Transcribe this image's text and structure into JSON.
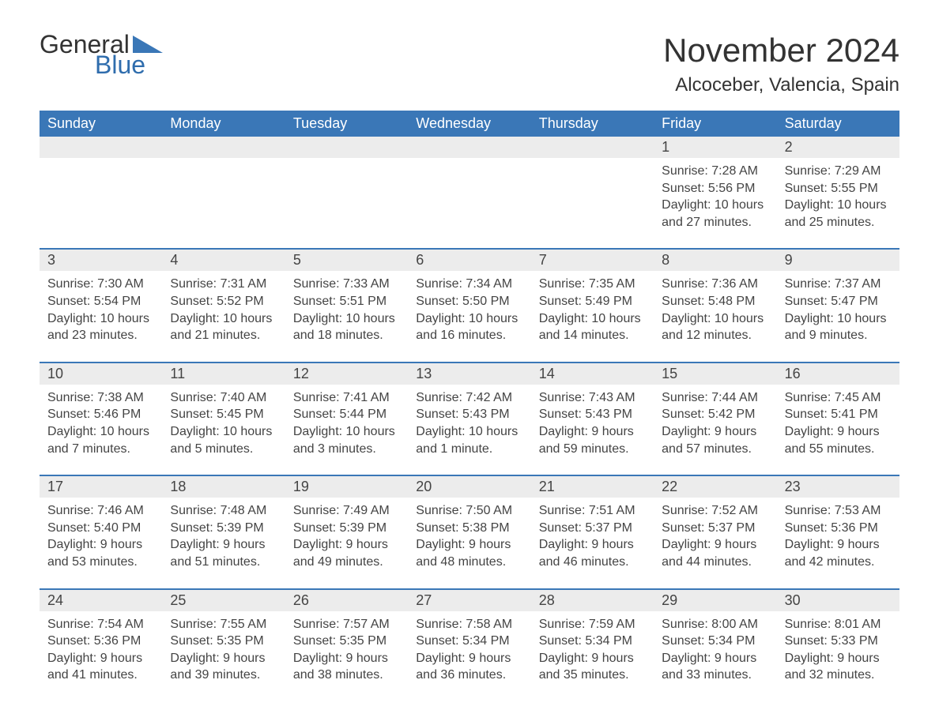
{
  "logo": {
    "text1": "General",
    "text2": "Blue"
  },
  "title": "November 2024",
  "location": "Alcoceber, Valencia, Spain",
  "colors": {
    "header_bg": "#3a77b7",
    "header_text": "#ffffff",
    "daynum_bg": "#ececec",
    "border": "#3a77b7",
    "body_text": "#444444",
    "logo_blue": "#2f6dad"
  },
  "fonts": {
    "title_size": 42,
    "location_size": 24,
    "header_size": 18,
    "cell_size": 16
  },
  "day_names": [
    "Sunday",
    "Monday",
    "Tuesday",
    "Wednesday",
    "Thursday",
    "Friday",
    "Saturday"
  ],
  "weeks": [
    [
      null,
      null,
      null,
      null,
      null,
      {
        "n": "1",
        "sunrise": "7:28 AM",
        "sunset": "5:56 PM",
        "dl": "10 hours and 27 minutes."
      },
      {
        "n": "2",
        "sunrise": "7:29 AM",
        "sunset": "5:55 PM",
        "dl": "10 hours and 25 minutes."
      }
    ],
    [
      {
        "n": "3",
        "sunrise": "7:30 AM",
        "sunset": "5:54 PM",
        "dl": "10 hours and 23 minutes."
      },
      {
        "n": "4",
        "sunrise": "7:31 AM",
        "sunset": "5:52 PM",
        "dl": "10 hours and 21 minutes."
      },
      {
        "n": "5",
        "sunrise": "7:33 AM",
        "sunset": "5:51 PM",
        "dl": "10 hours and 18 minutes."
      },
      {
        "n": "6",
        "sunrise": "7:34 AM",
        "sunset": "5:50 PM",
        "dl": "10 hours and 16 minutes."
      },
      {
        "n": "7",
        "sunrise": "7:35 AM",
        "sunset": "5:49 PM",
        "dl": "10 hours and 14 minutes."
      },
      {
        "n": "8",
        "sunrise": "7:36 AM",
        "sunset": "5:48 PM",
        "dl": "10 hours and 12 minutes."
      },
      {
        "n": "9",
        "sunrise": "7:37 AM",
        "sunset": "5:47 PM",
        "dl": "10 hours and 9 minutes."
      }
    ],
    [
      {
        "n": "10",
        "sunrise": "7:38 AM",
        "sunset": "5:46 PM",
        "dl": "10 hours and 7 minutes."
      },
      {
        "n": "11",
        "sunrise": "7:40 AM",
        "sunset": "5:45 PM",
        "dl": "10 hours and 5 minutes."
      },
      {
        "n": "12",
        "sunrise": "7:41 AM",
        "sunset": "5:44 PM",
        "dl": "10 hours and 3 minutes."
      },
      {
        "n": "13",
        "sunrise": "7:42 AM",
        "sunset": "5:43 PM",
        "dl": "10 hours and 1 minute."
      },
      {
        "n": "14",
        "sunrise": "7:43 AM",
        "sunset": "5:43 PM",
        "dl": "9 hours and 59 minutes."
      },
      {
        "n": "15",
        "sunrise": "7:44 AM",
        "sunset": "5:42 PM",
        "dl": "9 hours and 57 minutes."
      },
      {
        "n": "16",
        "sunrise": "7:45 AM",
        "sunset": "5:41 PM",
        "dl": "9 hours and 55 minutes."
      }
    ],
    [
      {
        "n": "17",
        "sunrise": "7:46 AM",
        "sunset": "5:40 PM",
        "dl": "9 hours and 53 minutes."
      },
      {
        "n": "18",
        "sunrise": "7:48 AM",
        "sunset": "5:39 PM",
        "dl": "9 hours and 51 minutes."
      },
      {
        "n": "19",
        "sunrise": "7:49 AM",
        "sunset": "5:39 PM",
        "dl": "9 hours and 49 minutes."
      },
      {
        "n": "20",
        "sunrise": "7:50 AM",
        "sunset": "5:38 PM",
        "dl": "9 hours and 48 minutes."
      },
      {
        "n": "21",
        "sunrise": "7:51 AM",
        "sunset": "5:37 PM",
        "dl": "9 hours and 46 minutes."
      },
      {
        "n": "22",
        "sunrise": "7:52 AM",
        "sunset": "5:37 PM",
        "dl": "9 hours and 44 minutes."
      },
      {
        "n": "23",
        "sunrise": "7:53 AM",
        "sunset": "5:36 PM",
        "dl": "9 hours and 42 minutes."
      }
    ],
    [
      {
        "n": "24",
        "sunrise": "7:54 AM",
        "sunset": "5:36 PM",
        "dl": "9 hours and 41 minutes."
      },
      {
        "n": "25",
        "sunrise": "7:55 AM",
        "sunset": "5:35 PM",
        "dl": "9 hours and 39 minutes."
      },
      {
        "n": "26",
        "sunrise": "7:57 AM",
        "sunset": "5:35 PM",
        "dl": "9 hours and 38 minutes."
      },
      {
        "n": "27",
        "sunrise": "7:58 AM",
        "sunset": "5:34 PM",
        "dl": "9 hours and 36 minutes."
      },
      {
        "n": "28",
        "sunrise": "7:59 AM",
        "sunset": "5:34 PM",
        "dl": "9 hours and 35 minutes."
      },
      {
        "n": "29",
        "sunrise": "8:00 AM",
        "sunset": "5:34 PM",
        "dl": "9 hours and 33 minutes."
      },
      {
        "n": "30",
        "sunrise": "8:01 AM",
        "sunset": "5:33 PM",
        "dl": "9 hours and 32 minutes."
      }
    ]
  ],
  "labels": {
    "sunrise": "Sunrise:",
    "sunset": "Sunset:",
    "daylight": "Daylight:"
  }
}
